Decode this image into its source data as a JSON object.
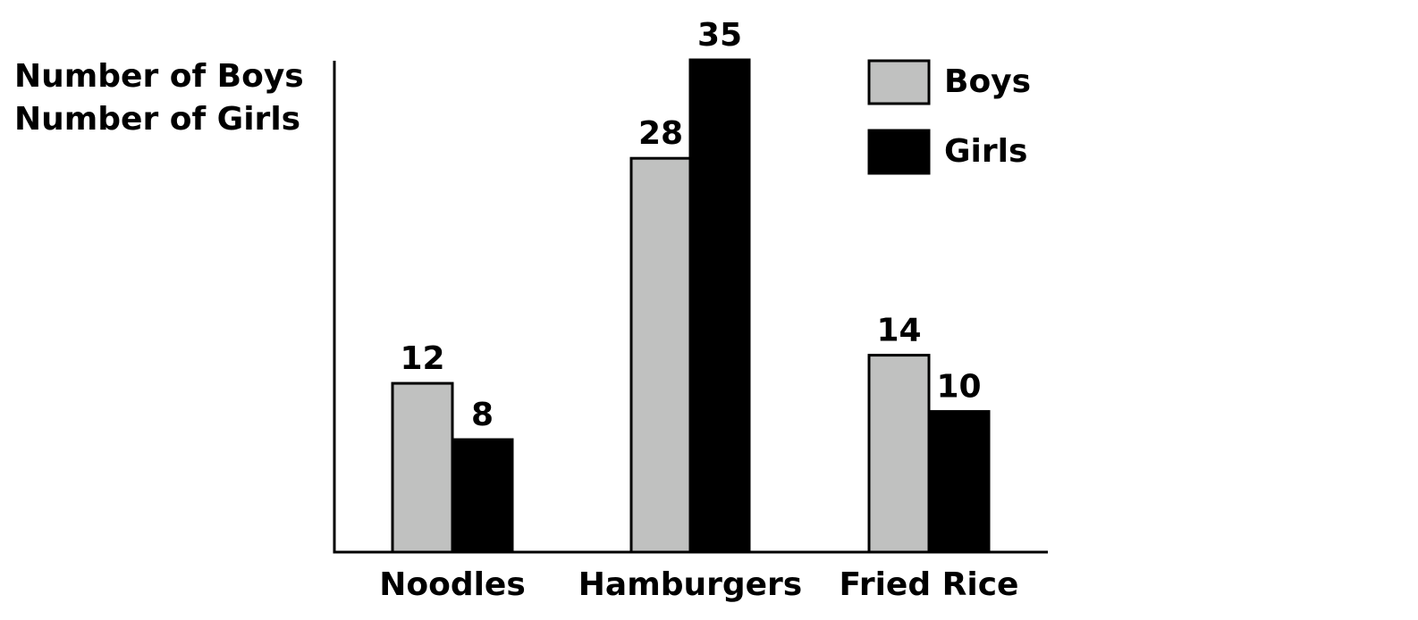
{
  "chart_data": {
    "type": "bar",
    "title": "",
    "xlabel": "",
    "ylabel": [
      "Number of Boys",
      "Number of Girls"
    ],
    "categories": [
      "Noodles",
      "Hamburgers",
      "Fried Rice"
    ],
    "series": [
      {
        "name": "Boys",
        "values": [
          12,
          28,
          14
        ],
        "color": "#c0c1c0"
      },
      {
        "name": "Girls",
        "values": [
          8,
          35,
          10
        ],
        "color": "#000000"
      }
    ],
    "ylim": [
      0,
      35
    ],
    "grid": false,
    "legend": {
      "position": "top-right"
    },
    "data_labels": true
  }
}
